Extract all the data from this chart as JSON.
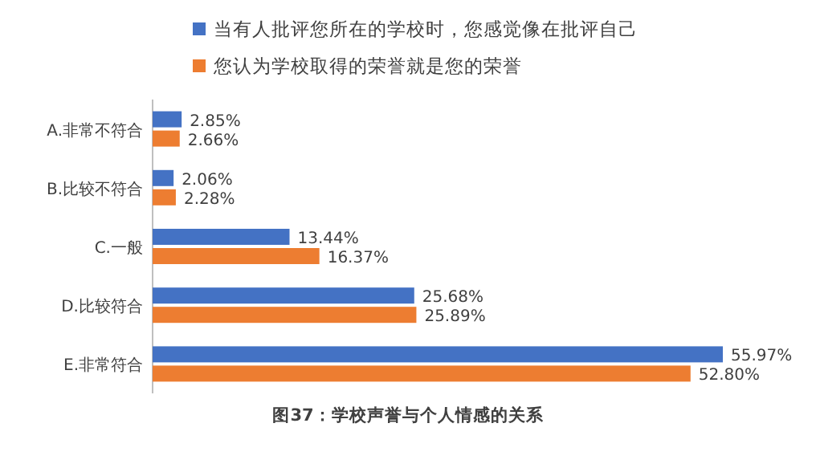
{
  "chart_data": {
    "type": "bar",
    "orientation": "horizontal",
    "title": "图37：学校声誉与个人情感的关系",
    "legend": "top",
    "categories": [
      "A.非常不符合",
      "B.比较不符合",
      "C.一般",
      "D.比较符合",
      "E.非常符合"
    ],
    "series": [
      {
        "name": "当有人批评您所在的学校时，您感觉像在批评自己",
        "color": "#4472c4",
        "values": [
          2.85,
          2.06,
          13.44,
          25.68,
          55.97
        ],
        "value_labels": [
          "2.85%",
          "2.06%",
          "13.44%",
          "25.68%",
          "55.97%"
        ]
      },
      {
        "name": "您认为学校取得的荣誉就是您的荣誉",
        "color": "#ed7d31",
        "values": [
          2.66,
          2.28,
          16.37,
          25.89,
          52.8
        ],
        "value_labels": [
          "2.66%",
          "2.28%",
          "16.37%",
          "25.89%",
          "52.80%"
        ]
      }
    ]
  }
}
